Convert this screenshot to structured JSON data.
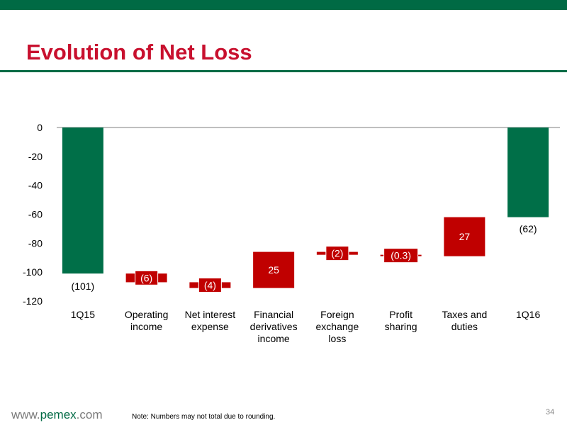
{
  "header": {
    "title": "Evolution of Net Loss"
  },
  "footer": {
    "url_prefix": "www.",
    "url_brand": "pemex",
    "url_suffix": ".com",
    "note": "Note: Numbers may not total due to rounding.",
    "page_number": "34"
  },
  "colors": {
    "green": "#006a44",
    "red": "#c8102e",
    "bar_green": "#006f48",
    "bar_red": "#c00000"
  },
  "chart_data": {
    "type": "bar",
    "subtype": "waterfall",
    "ylim": [
      -120,
      0
    ],
    "yticks": [
      0,
      -20,
      -40,
      -60,
      -80,
      -100,
      -120
    ],
    "grid": false,
    "categories": [
      [
        "1Q15"
      ],
      [
        "Operating",
        "income"
      ],
      [
        "Net interest",
        "expense"
      ],
      [
        "Financial",
        "derivatives",
        "income"
      ],
      [
        "Foreign",
        "exchange",
        "loss"
      ],
      [
        "Profit",
        "sharing"
      ],
      [
        "Taxes and",
        "duties"
      ],
      [
        "1Q16"
      ]
    ],
    "bars": [
      {
        "kind": "total",
        "start": 0,
        "end": -101,
        "label": "(101)",
        "color": "green"
      },
      {
        "kind": "delta",
        "start": -101,
        "end": -107,
        "label": "(6)",
        "color": "red"
      },
      {
        "kind": "delta",
        "start": -107,
        "end": -111,
        "label": "(4)",
        "color": "red"
      },
      {
        "kind": "delta",
        "start": -111,
        "end": -86,
        "label": "25",
        "color": "red"
      },
      {
        "kind": "delta",
        "start": -86,
        "end": -88,
        "label": "(2)",
        "color": "red"
      },
      {
        "kind": "delta",
        "start": -88,
        "end": -88.3,
        "label": "(0.3)",
        "color": "red"
      },
      {
        "kind": "delta",
        "start": -89,
        "end": -62,
        "label": "27",
        "color": "red"
      },
      {
        "kind": "total",
        "start": 0,
        "end": -62,
        "label": "(62)",
        "color": "green"
      }
    ]
  }
}
